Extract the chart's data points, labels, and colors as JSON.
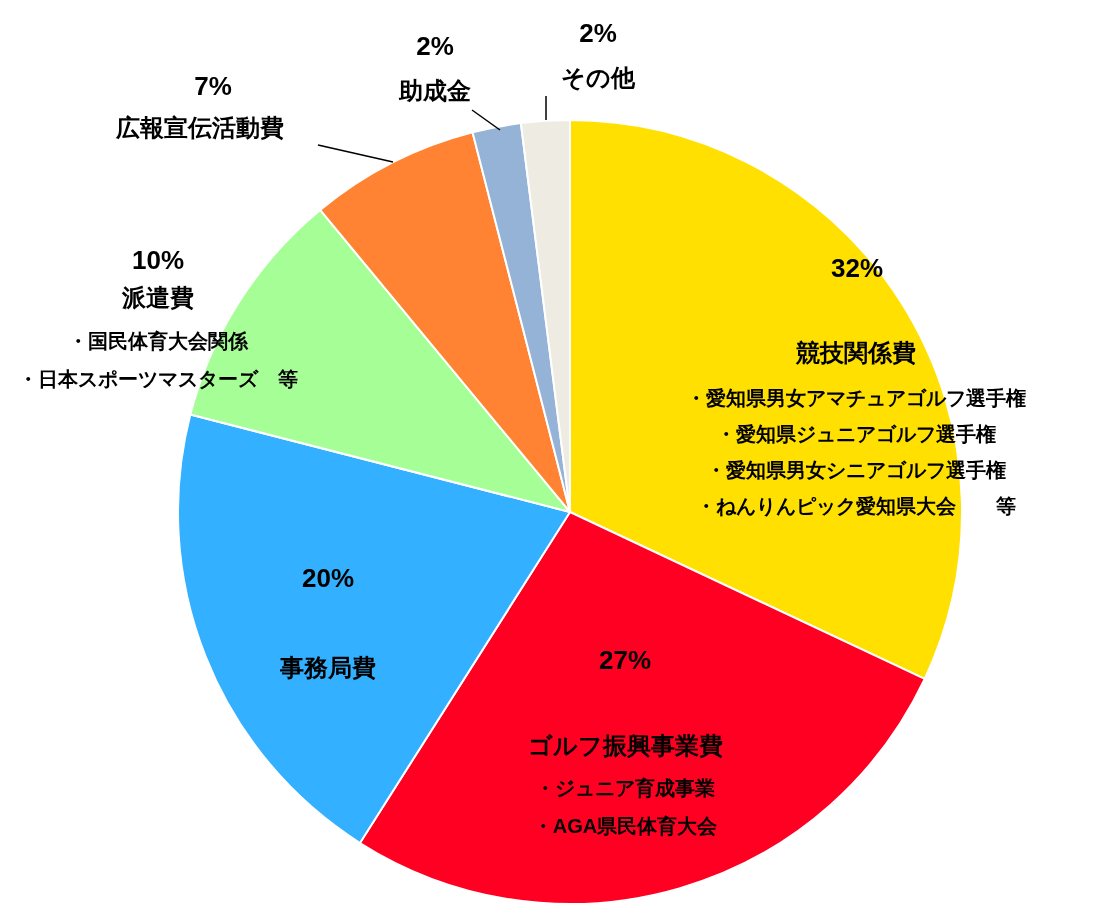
{
  "chart_data": {
    "type": "pie",
    "categories": [
      "競技関係費",
      "ゴルフ振興事業費",
      "事務局費",
      "派遣費",
      "広報宣伝活動費",
      "助成金",
      "その他"
    ],
    "values": [
      32,
      27,
      20,
      10,
      7,
      2,
      2
    ],
    "value_labels": [
      "32%",
      "27%",
      "20%",
      "10%",
      "7%",
      "2%",
      "2%"
    ],
    "colors": [
      "#ffe000",
      "#ff0022",
      "#33b0ff",
      "#a6ff96",
      "#ff8333",
      "#95b3d7",
      "#eeebe3"
    ],
    "annotations": [
      {
        "text": "・愛知県男女アマチュアゴルフ選手権",
        "x": "競技関係費"
      },
      {
        "text": "・愛知県ジュニアゴルフ選手権",
        "x": "競技関係費"
      },
      {
        "text": "・愛知県男女シニアゴルフ選手権",
        "x": "競技関係費"
      },
      {
        "text": "・ねんりんピック愛知県大会　　等",
        "x": "競技関係費"
      },
      {
        "text": "・ジュニア育成事業",
        "x": "ゴルフ振興事業費"
      },
      {
        "text": "・AGA県民体育大会",
        "x": "ゴルフ振興事業費"
      },
      {
        "text": "・国民体育大会関係",
        "x": "派遣費"
      },
      {
        "text": "・日本スポーツマスターズ　等",
        "x": "派遣費"
      }
    ]
  }
}
